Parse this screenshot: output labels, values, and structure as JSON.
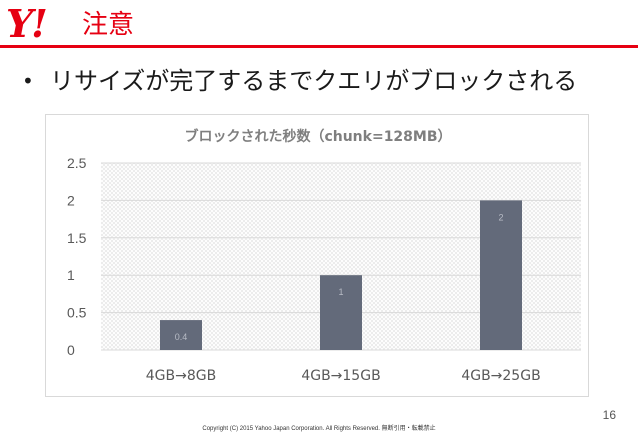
{
  "header": {
    "logo_text": "Y!",
    "title": "注意",
    "accent_color": "#e60012"
  },
  "bullet": {
    "symbol": "•",
    "text": "リサイズが完了するまでクエリがブロックされる"
  },
  "chart_data": {
    "type": "bar",
    "title": "ブロックされた秒数（chunk=128MB）",
    "categories": [
      "4GB→8GB",
      "4GB→15GB",
      "4GB→25GB"
    ],
    "values": [
      0.4,
      1,
      2
    ],
    "data_labels": [
      "0.4",
      "1",
      "2"
    ],
    "ylim": [
      0,
      2.5
    ],
    "yticks": [
      "0",
      "0.5",
      "1",
      "1.5",
      "2",
      "2.5"
    ],
    "ytick_values": [
      0,
      0.5,
      1,
      1.5,
      2,
      2.5
    ],
    "grid": true,
    "bar_color": "#636a7a"
  },
  "footer": {
    "copyright": "Copyright (C) 2015 Yahoo Japan Corporation. All Rights Reserved. 無断引用・転載禁止",
    "page_number": "16"
  }
}
